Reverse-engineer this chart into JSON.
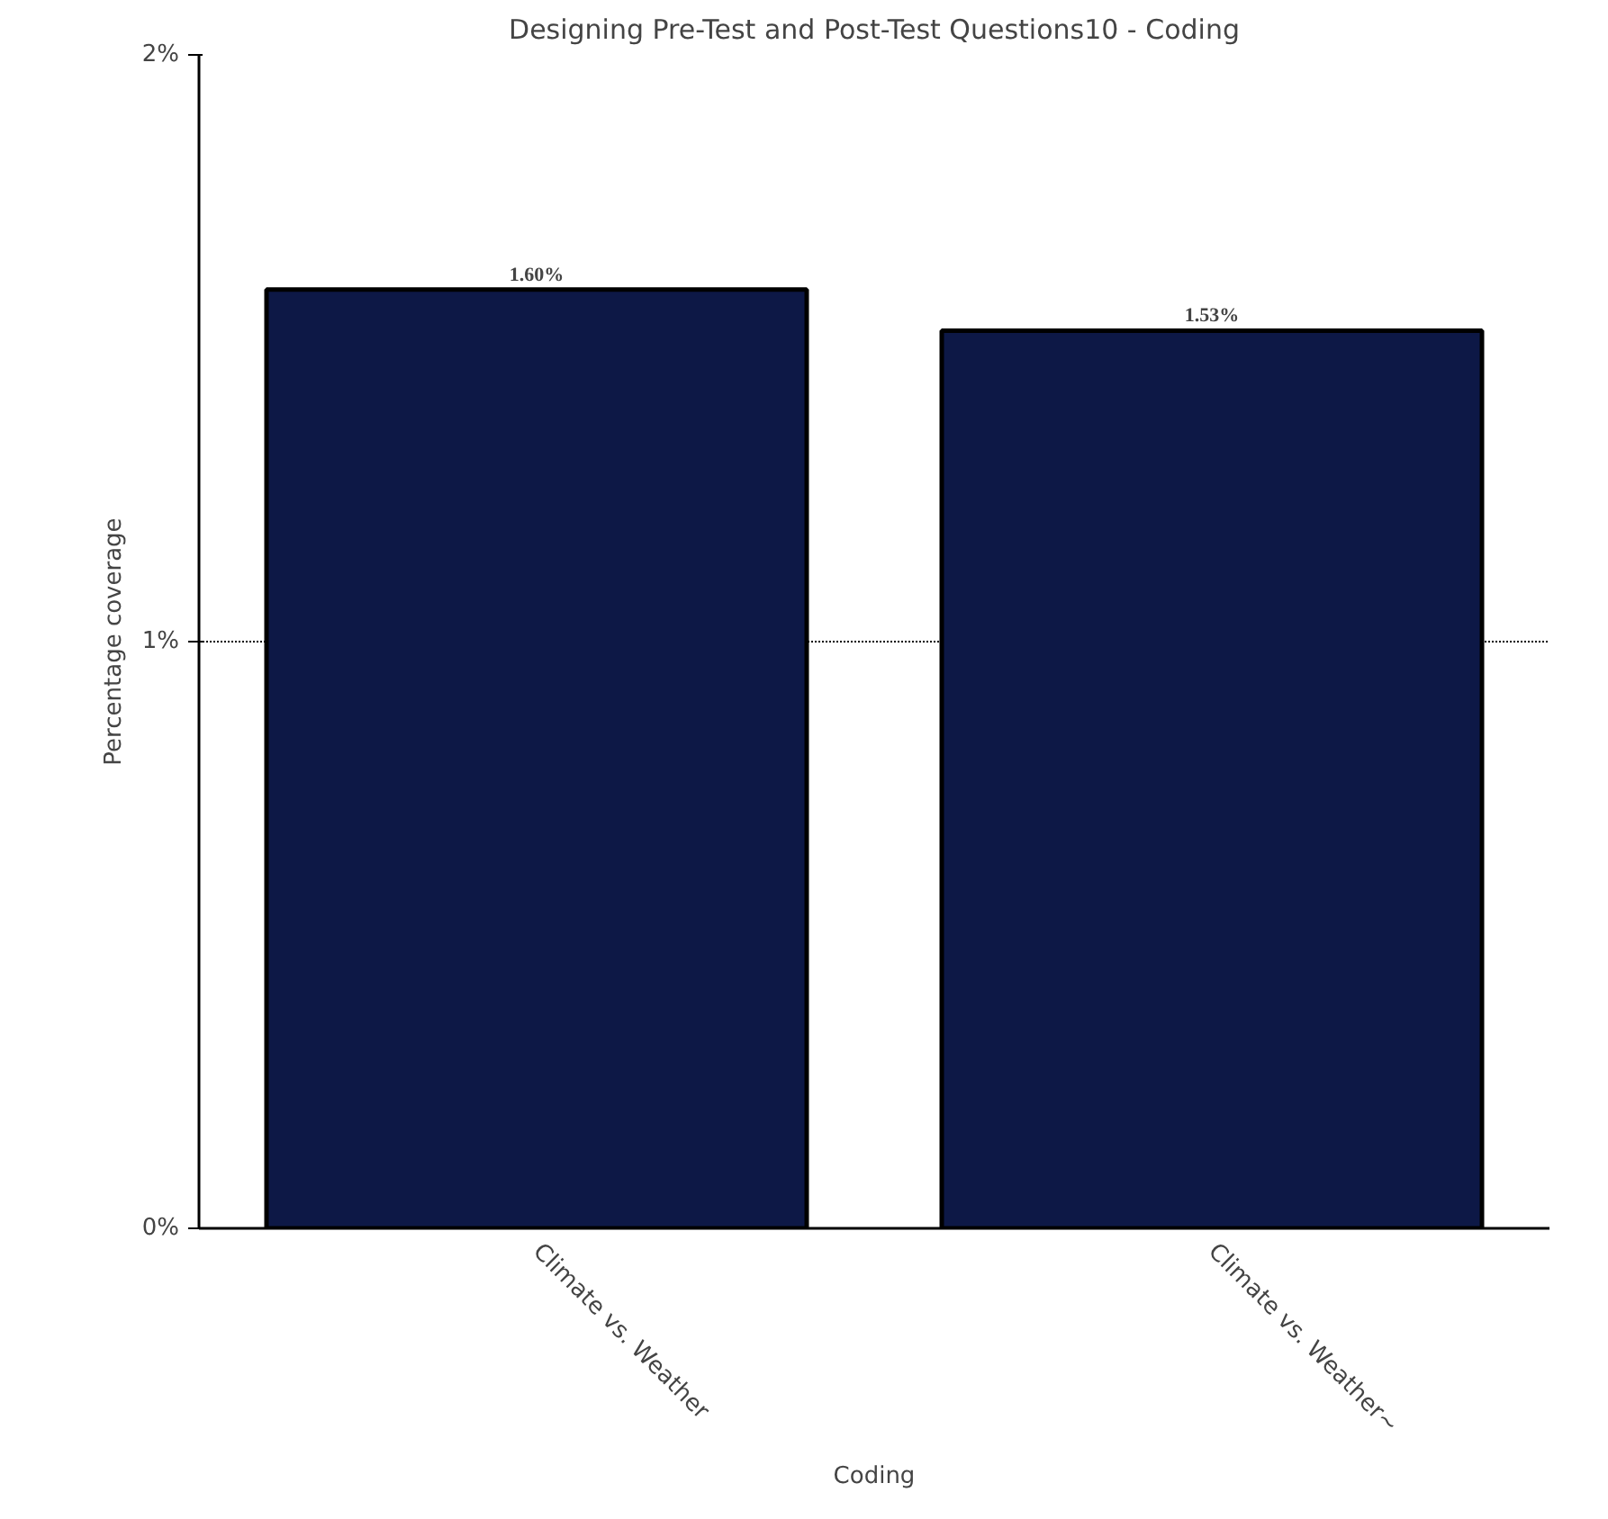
{
  "chart_data": {
    "type": "bar",
    "title": "Designing Pre-Test and Post-Test Questions10 - Coding",
    "xlabel": "Coding",
    "ylabel": "Percentage coverage",
    "categories": [
      "Climate vs. Weather",
      "Climate vs. Weather~"
    ],
    "values": [
      1.6,
      1.53
    ],
    "color": "#0d1846",
    "value_labels": [
      "1.60%",
      "1.53%"
    ],
    "ylim": [
      0,
      2
    ],
    "yticks": [
      {
        "value": 0,
        "label": "0%"
      },
      {
        "value": 1,
        "label": "1%"
      },
      {
        "value": 2,
        "label": "2%"
      }
    ],
    "grid": "y"
  }
}
